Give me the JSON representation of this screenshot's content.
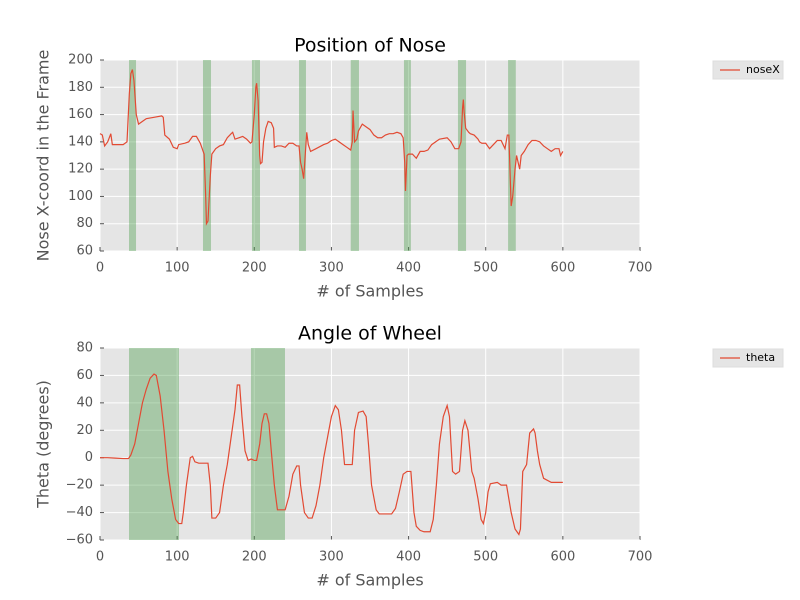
{
  "chart_data": [
    {
      "type": "line",
      "title": "Position of Nose",
      "xlabel": "# of Samples",
      "ylabel": "Nose X-coord in the Frame",
      "xlim": [
        0,
        700
      ],
      "ylim": [
        60,
        200
      ],
      "xticks": [
        0,
        100,
        200,
        300,
        400,
        500,
        600,
        700
      ],
      "yticks": [
        60,
        80,
        100,
        120,
        140,
        160,
        180,
        200
      ],
      "grid": true,
      "legend": "outside-upper-right",
      "span_color": "#4c9e4c",
      "spans": [
        [
          37.6,
          46.7
        ],
        [
          133.5,
          143.9
        ],
        [
          197,
          207.4
        ],
        [
          258,
          267
        ],
        [
          325,
          335.7
        ],
        [
          394,
          403
        ],
        [
          464,
          474.5
        ],
        [
          529,
          539
        ]
      ],
      "series": [
        {
          "name": "noseX",
          "color": "#e24a33",
          "x": [
            0,
            3,
            6,
            10,
            14,
            16,
            20,
            30,
            35,
            38,
            40,
            42,
            44,
            47,
            50,
            55,
            60,
            70,
            80,
            82,
            84,
            90,
            95,
            100,
            102,
            110,
            115,
            120,
            125,
            130,
            135,
            137,
            138,
            140,
            143,
            145,
            150,
            155,
            160,
            165,
            170,
            172,
            175,
            180,
            185,
            190,
            195,
            197,
            200,
            202,
            203,
            205,
            207,
            208,
            210,
            212,
            215,
            218,
            222,
            225,
            226,
            230,
            235,
            240,
            245,
            250,
            255,
            258,
            260,
            262,
            264,
            266,
            268,
            270,
            273,
            280,
            290,
            295,
            300,
            305,
            310,
            315,
            320,
            325,
            327,
            328,
            330,
            333,
            335,
            340,
            345,
            350,
            355,
            360,
            365,
            370,
            375,
            380,
            385,
            390,
            393,
            395,
            396,
            398,
            400,
            405,
            410,
            415,
            420,
            425,
            430,
            440,
            450,
            455,
            460,
            465,
            468,
            470,
            471,
            472,
            474,
            478,
            480,
            485,
            490,
            492,
            495,
            500,
            505,
            510,
            515,
            520,
            525,
            528,
            530,
            532,
            533,
            535,
            538,
            540,
            542,
            544,
            546,
            550,
            555,
            560,
            565,
            570,
            575,
            580,
            585,
            590,
            595,
            597,
            600
          ],
          "values": [
            146,
            145,
            137,
            140,
            146,
            138,
            138,
            138,
            140,
            175,
            190,
            193,
            185,
            160,
            153,
            155,
            157,
            158,
            159,
            158,
            145,
            142,
            136,
            135,
            138,
            139,
            140,
            144,
            144,
            139,
            131,
            100,
            80,
            82,
            115,
            131,
            135,
            137,
            138,
            143,
            146,
            147,
            142,
            143,
            144,
            142,
            139,
            140,
            160,
            180,
            183,
            170,
            130,
            124,
            125,
            140,
            150,
            155,
            154,
            150,
            136,
            137,
            137,
            136,
            139,
            139,
            137,
            137,
            125,
            120,
            113,
            130,
            147,
            138,
            133,
            135,
            138,
            139,
            141,
            142,
            140,
            138,
            136,
            134,
            140,
            163,
            140,
            142,
            148,
            153,
            151,
            149,
            145,
            143,
            143,
            145,
            146,
            146,
            147,
            146,
            143,
            125,
            104,
            130,
            131,
            131,
            128,
            133,
            133,
            134,
            138,
            142,
            143,
            140,
            135,
            135,
            140,
            165,
            171,
            162,
            150,
            147,
            146,
            145,
            142,
            140,
            139,
            139,
            135,
            138,
            141,
            141,
            135,
            145,
            145,
            110,
            93,
            100,
            120,
            130,
            125,
            120,
            130,
            133,
            138,
            141,
            141,
            140,
            137,
            135,
            133,
            135,
            135,
            130,
            133
          ]
        }
      ]
    },
    {
      "type": "line",
      "title": "Angle of Wheel",
      "xlabel": "# of Samples",
      "ylabel": "Theta (degrees)",
      "xlim": [
        0,
        700
      ],
      "ylim": [
        -60,
        80
      ],
      "xticks": [
        0,
        100,
        200,
        300,
        400,
        500,
        600,
        700
      ],
      "yticks": [
        {
          "value": -60,
          "label": "−60"
        },
        {
          "value": -40,
          "label": "−40"
        },
        {
          "value": -20,
          "label": "−20"
        },
        0,
        20,
        40,
        60,
        80
      ],
      "grid": true,
      "legend": "outside-upper-right",
      "span_color": "#4c9e4c",
      "spans": [
        [
          37.6,
          102.4
        ],
        [
          195.7,
          239.8
        ]
      ],
      "series": [
        {
          "name": "theta",
          "color": "#e24a33",
          "x": [
            0,
            10,
            20,
            30,
            37,
            40,
            45,
            50,
            55,
            60,
            65,
            70,
            73,
            78,
            83,
            88,
            93,
            98,
            102,
            106,
            108,
            112,
            117,
            120,
            123,
            128,
            135,
            140,
            143,
            145,
            150,
            155,
            160,
            165,
            170,
            175,
            178,
            181,
            184,
            188,
            192,
            196,
            200,
            203,
            207,
            210,
            213,
            216,
            219,
            222,
            226,
            230,
            235,
            240,
            245,
            250,
            255,
            258,
            260,
            265,
            270,
            275,
            280,
            285,
            290,
            295,
            300,
            305,
            309,
            313,
            317,
            323,
            327,
            330,
            335,
            341,
            345,
            348,
            352,
            358,
            362,
            370,
            378,
            383,
            388,
            393,
            398,
            403,
            407,
            410,
            415,
            420,
            428,
            432,
            436,
            440,
            445,
            450,
            453,
            457,
            461,
            466,
            470,
            473,
            477,
            482,
            485,
            490,
            494,
            497,
            500,
            503,
            506,
            515,
            520,
            527,
            533,
            538,
            543,
            545,
            548,
            553,
            557,
            562,
            564,
            567,
            570,
            575,
            585,
            590,
            600
          ],
          "values": [
            0,
            0,
            -0.3,
            -0.6,
            -0.6,
            2,
            10,
            25,
            40,
            50,
            58,
            61,
            60,
            45,
            20,
            -10,
            -30,
            -45,
            -48,
            -48,
            -40,
            -20,
            0,
            1,
            -3,
            -4,
            -4,
            -4,
            -20,
            -44,
            -44,
            -40,
            -20,
            -5,
            15,
            35,
            53,
            53,
            30,
            5,
            -2,
            -1,
            -2,
            -2,
            10,
            25,
            32,
            32,
            25,
            5,
            -20,
            -38,
            -38,
            -38,
            -28,
            -12,
            -6,
            -6,
            -20,
            -40,
            -44,
            -44,
            -35,
            -20,
            0,
            15,
            30,
            38,
            35,
            20,
            -5,
            -5,
            -5,
            20,
            33,
            34,
            30,
            10,
            -20,
            -38,
            -41,
            -41,
            -41,
            -37,
            -25,
            -12,
            -10,
            -10,
            -40,
            -50,
            -53,
            -54,
            -54,
            -45,
            -20,
            10,
            30,
            38,
            30,
            -10,
            -12,
            -10,
            20,
            27,
            20,
            -10,
            -15,
            -30,
            -45,
            -48,
            -40,
            -25,
            -19,
            -18,
            -20,
            -20,
            -40,
            -52,
            -56,
            -52,
            -10,
            -5,
            18,
            21,
            18,
            5,
            -5,
            -15,
            -18,
            -18,
            -18
          ]
        }
      ]
    }
  ]
}
